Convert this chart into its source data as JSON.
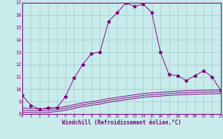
{
  "x": [
    0,
    1,
    2,
    3,
    4,
    5,
    6,
    7,
    8,
    9,
    10,
    11,
    12,
    13,
    14,
    15,
    16,
    17,
    18,
    19,
    20,
    21,
    22,
    23
  ],
  "line_main": [
    9.5,
    8.7,
    8.4,
    8.5,
    8.5,
    9.4,
    10.9,
    12.0,
    12.9,
    13.0,
    15.5,
    16.2,
    17.0,
    16.7,
    16.9,
    16.2,
    13.0,
    11.2,
    11.1,
    10.7,
    11.1,
    11.5,
    11.0,
    9.9
  ],
  "line2": [
    8.5,
    8.45,
    8.4,
    8.42,
    8.5,
    8.6,
    8.75,
    8.9,
    9.0,
    9.1,
    9.25,
    9.35,
    9.45,
    9.55,
    9.65,
    9.7,
    9.75,
    9.8,
    9.85,
    9.88,
    9.9,
    9.92,
    9.93,
    9.95
  ],
  "line3": [
    8.3,
    8.28,
    8.25,
    8.27,
    8.35,
    8.45,
    8.6,
    8.75,
    8.85,
    8.95,
    9.1,
    9.2,
    9.3,
    9.4,
    9.5,
    9.55,
    9.6,
    9.65,
    9.7,
    9.72,
    9.75,
    9.77,
    9.78,
    9.8
  ],
  "line4": [
    8.15,
    8.12,
    8.1,
    8.12,
    8.2,
    8.3,
    8.45,
    8.6,
    8.7,
    8.8,
    8.95,
    9.05,
    9.15,
    9.25,
    9.35,
    9.4,
    9.45,
    9.5,
    9.55,
    9.57,
    9.6,
    9.62,
    9.63,
    9.65
  ],
  "color": "#800080",
  "bg_color": "#c8ecec",
  "grid_color": "#a0c8c8",
  "xlabel": "Windchill (Refroidissement éolien,°C)",
  "ylim": [
    8,
    17
  ],
  "xlim": [
    0,
    23
  ],
  "yticks": [
    8,
    9,
    10,
    11,
    12,
    13,
    14,
    15,
    16,
    17
  ],
  "xticks": [
    0,
    1,
    2,
    3,
    4,
    5,
    6,
    7,
    8,
    9,
    10,
    11,
    12,
    13,
    14,
    15,
    16,
    17,
    18,
    19,
    20,
    21,
    22,
    23
  ]
}
